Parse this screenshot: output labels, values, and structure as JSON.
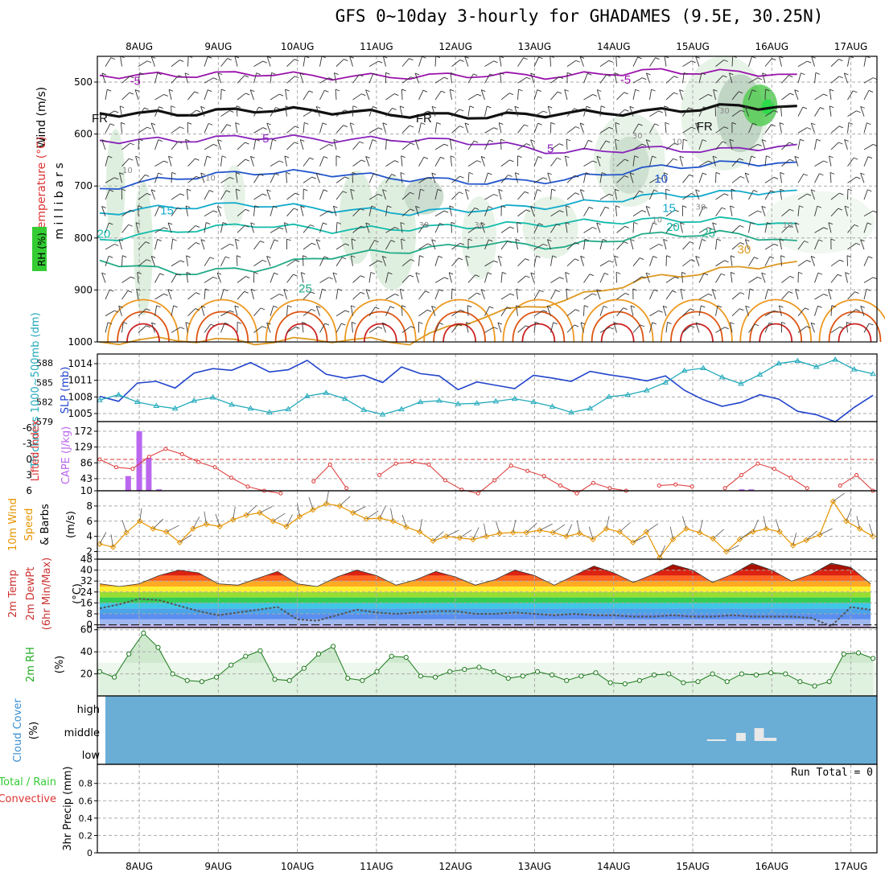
{
  "title": "GFS 0~10day 3-hourly for GHADAMES (9.5E, 30.25N)",
  "colors": {
    "rh": "#33cc33",
    "temperature": "#dd3333",
    "wind": "#993399",
    "slp": "#2244cc",
    "thickness": "#22aabb",
    "lifted_index": "#dd3333",
    "cape": "#bb66ee",
    "wind_speed": "#e69500",
    "barbs": "#555555",
    "rh2m": "#22aa22",
    "cloud": "#6aaed6",
    "precip_total": "#33cc33",
    "precip_conv": "#dd3333"
  },
  "chart_data": [
    {
      "type": "line",
      "panel": "vertical_cross_section",
      "xlabels": [
        "8AUG",
        "9AUG",
        "10AUG",
        "11AUG",
        "12AUG",
        "13AUG",
        "14AUG",
        "15AUG",
        "16AUG",
        "17AUG"
      ],
      "ylabel": "m i l l i b a r s",
      "side_labels": [
        "Wind (m/s)",
        "Temperature (°C)",
        "RH (%)"
      ],
      "y_ticks": [
        500,
        600,
        700,
        800,
        900,
        1000
      ],
      "ylim": [
        1000,
        450
      ],
      "isotherm_labels": [
        "-5",
        "-5",
        "5",
        "5",
        "10",
        "15",
        "15",
        "20",
        "20",
        "25",
        "25",
        "30",
        "FR",
        "FR",
        "FR"
      ],
      "rh_labels": [
        "10",
        "10",
        "30",
        "30",
        "30",
        "10",
        "10",
        "30",
        "30",
        "10"
      ],
      "isotherms": [
        {
          "label": "-5",
          "p": [
            487,
            487,
            483,
            490,
            489,
            486,
            489,
            479,
            481,
            485
          ]
        },
        {
          "label": "0",
          "p": [
            560,
            561,
            553,
            556,
            563,
            566,
            560,
            558,
            548,
            546
          ]
        },
        {
          "label": "5",
          "p": [
            612,
            612,
            605,
            611,
            610,
            617,
            636,
            628,
            632,
            620
          ]
        },
        {
          "label": "10",
          "p": [
            705,
            684,
            673,
            676,
            686,
            693,
            688,
            667,
            657,
            654
          ]
        },
        {
          "label": "15",
          "p": [
            752,
            740,
            735,
            745,
            751,
            744,
            737,
            720,
            714,
            708
          ]
        },
        {
          "label": "20",
          "p": [
            803,
            786,
            774,
            785,
            781,
            776,
            771,
            766,
            765,
            772
          ]
        },
        {
          "label": "25",
          "p": [
            843,
            867,
            860,
            834,
            824,
            810,
            817,
            795,
            791,
            805
          ]
        },
        {
          "label": "30",
          "p": [
            1000,
            995,
            1000,
            995,
            1000,
            948,
            920,
            880,
            862,
            845
          ]
        }
      ]
    },
    {
      "type": "line",
      "panel": "slp_thickness",
      "left_label": "Thickness 1000~500mb (dm)",
      "right_label": "SLP (mb)",
      "left_ticks": [
        579,
        582,
        585,
        588
      ],
      "right_ticks": [
        1005,
        1008,
        1011,
        1014
      ],
      "series": [
        {
          "name": "SLP",
          "values": [
            1008.1,
            1007.2,
            1010.5,
            1010.8,
            1009.6,
            1012.3,
            1013.1,
            1012.8,
            1014.2,
            1012.5,
            1012.9,
            1014.6,
            1012.1,
            1011.4,
            1011.9,
            1010.6,
            1013.4,
            1012.2,
            1011.8,
            1009.3,
            1010.7,
            1010.1,
            1009.5,
            1011.9,
            1011.4,
            1010.8,
            1012.6,
            1012.0,
            1011.5,
            1010.9,
            1011.8,
            1009.2,
            1007.5,
            1006.3,
            1007.0,
            1008.4,
            1007.6,
            1005.4,
            1004.8,
            1003.5,
            1006.1,
            1008.3
          ]
        },
        {
          "name": "Thickness",
          "values": [
            582.3,
            583.1,
            582.0,
            581.4,
            581.0,
            582.2,
            582.7,
            581.6,
            581.0,
            580.4,
            580.9,
            582.9,
            583.4,
            582.5,
            580.8,
            580.1,
            580.9,
            582.0,
            582.2,
            581.7,
            581.8,
            582.1,
            582.5,
            582.0,
            581.3,
            580.4,
            581.0,
            582.8,
            583.1,
            583.8,
            585.0,
            586.8,
            587.2,
            585.8,
            584.8,
            586.2,
            587.9,
            588.3,
            587.4,
            588.5,
            587.0,
            586.3
          ]
        }
      ]
    },
    {
      "type": "bar",
      "panel": "lifted_index_cape",
      "left_label": "Lifted Index",
      "right_label": "CAPE (J/kg)",
      "left_ticks": [
        6,
        3,
        0,
        -3,
        -6
      ],
      "right_ticks": [
        10,
        43,
        86,
        129,
        172
      ],
      "series": [
        {
          "name": "CAPE",
          "values": [
            {
              "x": 7.86,
              "v": 50
            },
            {
              "x": 8.0,
              "v": 172
            },
            {
              "x": 8.12,
              "v": 100
            },
            {
              "x": 8.25,
              "v": 14
            },
            {
              "x": 11.0,
              "v": 10
            },
            {
              "x": 15.62,
              "v": 14
            },
            {
              "x": 15.74,
              "v": 14
            }
          ]
        },
        {
          "name": "Lifted Index",
          "values": [
            0.0,
            1.5,
            1.8,
            -0.5,
            -2.0,
            -1.0,
            0.5,
            1.5,
            3.5,
            5.2,
            6.0,
            6.5,
            6.8,
            4.2,
            1.0,
            5.5,
            6.8,
            3.0,
            0.8,
            0.5,
            1.0,
            4.0,
            5.8,
            6.5,
            4.0,
            1.2,
            2.2,
            3.2,
            5.0,
            6.5,
            4.5,
            5.5,
            6.0,
            6.8,
            5.0,
            4.8,
            5.2,
            6.8,
            5.5,
            3.0,
            0.8,
            1.8,
            3.5,
            5.5,
            6.8,
            5.0,
            3.0,
            6.0
          ]
        }
      ]
    },
    {
      "type": "line",
      "panel": "wind_10m",
      "ylabel": "(m/s)",
      "side_labels": [
        "10m Wind",
        "Speed",
        "& Barbs"
      ],
      "y_ticks": [
        2,
        4,
        6,
        8
      ],
      "values": [
        3.0,
        2.6,
        4.5,
        6.0,
        5.0,
        4.6,
        3.2,
        5.0,
        5.6,
        5.3,
        6.2,
        6.8,
        7.1,
        6.0,
        5.3,
        6.6,
        7.5,
        8.3,
        8.0,
        7.1,
        6.3,
        6.4,
        6.0,
        5.2,
        4.6,
        3.4,
        4.0,
        3.8,
        3.6,
        4.0,
        4.4,
        4.5,
        4.5,
        4.8,
        4.5,
        4.0,
        4.4,
        3.6,
        5.0,
        4.6,
        3.2,
        4.6,
        1.2,
        3.6,
        5.0,
        4.5,
        3.7,
        2.0,
        3.6,
        4.6,
        5.0,
        4.6,
        2.8,
        3.5,
        4.2,
        8.6,
        6.0,
        5.0,
        4.0
      ]
    },
    {
      "type": "area",
      "panel": "temp_2m",
      "ylabel": "(°C)",
      "side_labels": [
        "2m Temp",
        "2m DewPt",
        "(6hr Min/Max)"
      ],
      "y_ticks": [
        0,
        8,
        16,
        24,
        32,
        40,
        48
      ],
      "ylim": [
        -2,
        48
      ],
      "series": [
        {
          "name": "2m Temp",
          "x": [
            7.5,
            7.75,
            8.0,
            8.25,
            8.5,
            8.75,
            9.0,
            9.25,
            9.5,
            9.75,
            10.0,
            10.25,
            10.5,
            10.75,
            11.0,
            11.25,
            11.5,
            11.75,
            12.0,
            12.25,
            12.5,
            12.75,
            13.0,
            13.25,
            13.5,
            13.75,
            14.0,
            14.25,
            14.5,
            14.75,
            15.0,
            15.25,
            15.5,
            15.75,
            16.0,
            16.25,
            16.5,
            16.75,
            17.0,
            17.25
          ],
          "values": [
            30,
            28,
            30,
            36,
            40,
            38,
            30,
            29,
            34,
            39,
            30,
            28,
            35,
            40,
            36,
            29,
            33,
            39,
            35,
            29,
            33,
            40,
            36,
            29,
            36,
            43,
            38,
            31,
            37,
            44,
            40,
            31,
            37,
            45,
            40,
            32,
            37,
            45,
            42,
            30
          ]
        },
        {
          "name": "2m DewPt",
          "values": [
            12,
            15,
            19,
            18,
            14,
            10,
            7,
            9,
            11,
            13,
            4,
            3,
            7,
            11,
            9,
            8,
            9,
            10,
            10,
            8,
            8,
            9,
            8,
            7,
            8,
            7,
            7,
            6,
            6,
            7,
            6,
            6,
            7,
            6,
            6,
            6,
            5,
            -1,
            13,
            11
          ]
        }
      ]
    },
    {
      "type": "area",
      "panel": "rh_2m",
      "ylabel": "(%)",
      "side_labels": [
        "2m RH"
      ],
      "y_ticks": [
        20,
        40,
        60
      ],
      "values": [
        22,
        17,
        38,
        57,
        44,
        20,
        14,
        13,
        17,
        28,
        36,
        41,
        15,
        14,
        25,
        38,
        45,
        16,
        14,
        22,
        36,
        35,
        18,
        17,
        22,
        24,
        26,
        22,
        16,
        18,
        22,
        19,
        14,
        18,
        21,
        12,
        11,
        14,
        19,
        20,
        12,
        13,
        20,
        13,
        20,
        19,
        21,
        20,
        13,
        9,
        13,
        38,
        39,
        34
      ]
    },
    {
      "type": "table",
      "panel": "cloud_cover",
      "side_labels": [
        "Cloud Cover",
        "(%)"
      ],
      "levels": [
        "high",
        "middle",
        "low"
      ],
      "blocks": [
        {
          "x": [
            15.18,
            15.42
          ],
          "level": "middle",
          "h": 2
        },
        {
          "x": [
            15.55,
            15.67
          ],
          "level": "middle",
          "h": 10
        },
        {
          "x": [
            15.78,
            15.9
          ],
          "level": "middle",
          "h": 16
        },
        {
          "x": [
            15.9,
            16.06
          ],
          "level": "middle",
          "h": 4
        }
      ]
    },
    {
      "type": "line",
      "panel": "precip",
      "ylabel": "3hr Precip (mm)",
      "side_labels": [
        "Total / Rain",
        "Convective"
      ],
      "y_ticks": [
        0,
        0.2,
        0.4,
        0.6,
        0.8
      ],
      "ylim": [
        0,
        1
      ],
      "run_total": "Run Total = 0",
      "values": []
    }
  ]
}
